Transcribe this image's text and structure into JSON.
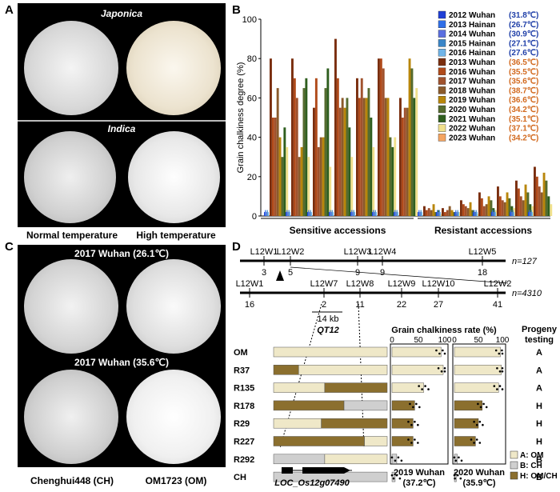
{
  "panels": {
    "a": {
      "label": "A",
      "top_label": "Japonica",
      "bottom_label": "Indica",
      "cap_left": "Normal temperature",
      "cap_right": "High temperature"
    },
    "b": {
      "label": "B"
    },
    "c": {
      "label": "C",
      "top_title": "2017 Wuhan (26.1℃)",
      "mid_title": "2017 Wuhan (35.6℃)",
      "cap_left": "Chenghui448 (CH)",
      "cap_right": "OM1723 (OM)"
    },
    "d": {
      "label": "D"
    }
  },
  "chart_data": [
    {
      "type": "bar",
      "ylabel": "Grain chalkiness degree (%)",
      "ylim": [
        0,
        100
      ],
      "yticks": [
        0,
        20,
        40,
        60,
        80,
        100
      ],
      "group_labels": [
        "Sensitive accessions",
        "Resistant accessions"
      ],
      "legend_placement": "top-right",
      "series": [
        {
          "name": "2012 Wuhan",
          "temp": "31.8℃",
          "color": "#1f3fd6",
          "temp_color": "#1f3fa8"
        },
        {
          "name": "2013 Hainan",
          "temp": "26.7℃",
          "color": "#2f6fe8",
          "temp_color": "#1f3fa8"
        },
        {
          "name": "2014 Wuhan",
          "temp": "30.9℃",
          "color": "#5a6fe0",
          "temp_color": "#1f3fa8"
        },
        {
          "name": "2015 Hainan",
          "temp": "27.1℃",
          "color": "#3a86c8",
          "temp_color": "#1f3fa8"
        },
        {
          "name": "2016 Hainan",
          "temp": "27.6℃",
          "color": "#6fb4e8",
          "temp_color": "#1f3fa8"
        },
        {
          "name": "2013 Wuhan",
          "temp": "36.5℃",
          "color": "#7a2e0e",
          "temp_color": "#d2691e"
        },
        {
          "name": "2016 Wuhan",
          "temp": "35.5℃",
          "color": "#b04a1a",
          "temp_color": "#d2691e"
        },
        {
          "name": "2017 Wuhan",
          "temp": "35.6℃",
          "color": "#a0522d",
          "temp_color": "#d2691e"
        },
        {
          "name": "2018 Wuhan",
          "temp": "38.7℃",
          "color": "#8b5a2b",
          "temp_color": "#d2691e"
        },
        {
          "name": "2019 Wuhan",
          "temp": "36.6℃",
          "color": "#b8860b",
          "temp_color": "#d2691e"
        },
        {
          "name": "2020 Wuhan",
          "temp": "34.2℃",
          "color": "#556b2f",
          "temp_color": "#d2691e"
        },
        {
          "name": "2021 Wuhan",
          "temp": "35.1℃",
          "color": "#2e5e1e",
          "temp_color": "#d2691e"
        },
        {
          "name": "2022 Wuhan",
          "temp": "37.1℃",
          "color": "#f0e08c",
          "temp_color": "#d2691e"
        },
        {
          "name": "2023 Wuhan",
          "temp": "34.2℃",
          "color": "#f4a460",
          "temp_color": "#d2691e"
        }
      ],
      "sensitive_heat_values": [
        [
          80,
          50,
          50,
          65,
          40,
          30,
          45,
          35
        ],
        [
          80,
          70,
          60,
          30,
          35,
          65,
          70,
          30
        ],
        [
          55,
          70,
          35,
          40,
          40,
          65,
          75,
          25
        ],
        [
          90,
          70,
          55,
          60,
          55,
          60,
          45,
          30
        ],
        [
          70,
          60,
          70,
          60,
          60,
          65,
          50,
          35
        ],
        [
          80,
          80,
          75,
          60,
          60,
          40,
          35,
          40
        ],
        [
          60,
          50,
          55,
          55,
          80,
          75,
          60,
          65
        ]
      ],
      "resistant_heat_values": [
        [
          5,
          3,
          4,
          3,
          6,
          2,
          3,
          1
        ],
        [
          4,
          2,
          3,
          5,
          3,
          2,
          1,
          2
        ],
        [
          8,
          6,
          5,
          4,
          7,
          3,
          2,
          1
        ],
        [
          12,
          9,
          5,
          6,
          10,
          8,
          4,
          3
        ],
        [
          15,
          10,
          8,
          7,
          12,
          9,
          5,
          4
        ],
        [
          18,
          14,
          10,
          8,
          16,
          12,
          6,
          5
        ],
        [
          25,
          20,
          15,
          12,
          22,
          18,
          10,
          6
        ]
      ],
      "cool_level": 2
    },
    {
      "type": "bar",
      "title": "Grain chalkiness rate (%)",
      "xticks": [
        0,
        50,
        100
      ],
      "rows": [
        "OM",
        "R37",
        "R135",
        "R178",
        "R29",
        "R227",
        "R292",
        "CH"
      ],
      "series": [
        {
          "name": "2019 Wuhan (37.2℃)",
          "values": [
            93,
            97,
            60,
            43,
            40,
            40,
            9,
            6
          ]
        },
        {
          "name": "2020 Wuhan (35.9℃)",
          "values": [
            96,
            98,
            92,
            58,
            50,
            44,
            6,
            4
          ]
        }
      ],
      "progeny_testing": [
        "A",
        "A",
        "A",
        "H",
        "H",
        "H",
        "B",
        "B"
      ],
      "progeny_header": [
        "Progeny",
        "testing"
      ],
      "legend": [
        {
          "key": "A",
          "label": "A: OM",
          "color": "#efe8c8"
        },
        {
          "key": "B",
          "label": "B: CH",
          "color": "#cfcfcf"
        },
        {
          "key": "H",
          "label": "H: OM/CH",
          "color": "#8b6f2e"
        }
      ]
    }
  ],
  "map": {
    "top_markers": [
      "L12W1",
      "L12W2",
      "L12W3",
      "L12W4",
      "L12W5"
    ],
    "top_counts": [
      "3",
      "5",
      "9",
      "9",
      "18"
    ],
    "top_n": "n=127",
    "bottom_markers": [
      "L12W1",
      "L12W7",
      "L12W8",
      "L12W9",
      "L12W10",
      "L12W2"
    ],
    "bottom_counts": [
      "16",
      "2",
      "11",
      "22",
      "27",
      "41"
    ],
    "bottom_n": "n=4310",
    "interval": "14 kb",
    "qtl": "QT12",
    "gene": "LOC_Os12g07490"
  },
  "genotypes": [
    {
      "name": "OM",
      "segments": [
        [
          "A",
          1.0
        ]
      ]
    },
    {
      "name": "R37",
      "segments": [
        [
          "H",
          0.22
        ],
        [
          "A",
          0.78
        ]
      ]
    },
    {
      "name": "R135",
      "segments": [
        [
          "A",
          0.45
        ],
        [
          "H",
          0.55
        ]
      ]
    },
    {
      "name": "R178",
      "segments": [
        [
          "H",
          0.62
        ],
        [
          "B",
          0.38
        ]
      ]
    },
    {
      "name": "R29",
      "segments": [
        [
          "A",
          0.42
        ],
        [
          "H",
          0.58
        ]
      ]
    },
    {
      "name": "R227",
      "segments": [
        [
          "H",
          0.8
        ],
        [
          "A",
          0.2
        ]
      ]
    },
    {
      "name": "R292",
      "segments": [
        [
          "B",
          0.45
        ],
        [
          "A",
          0.55
        ]
      ]
    },
    {
      "name": "CH",
      "segments": [
        [
          "B",
          1.0
        ]
      ]
    }
  ]
}
